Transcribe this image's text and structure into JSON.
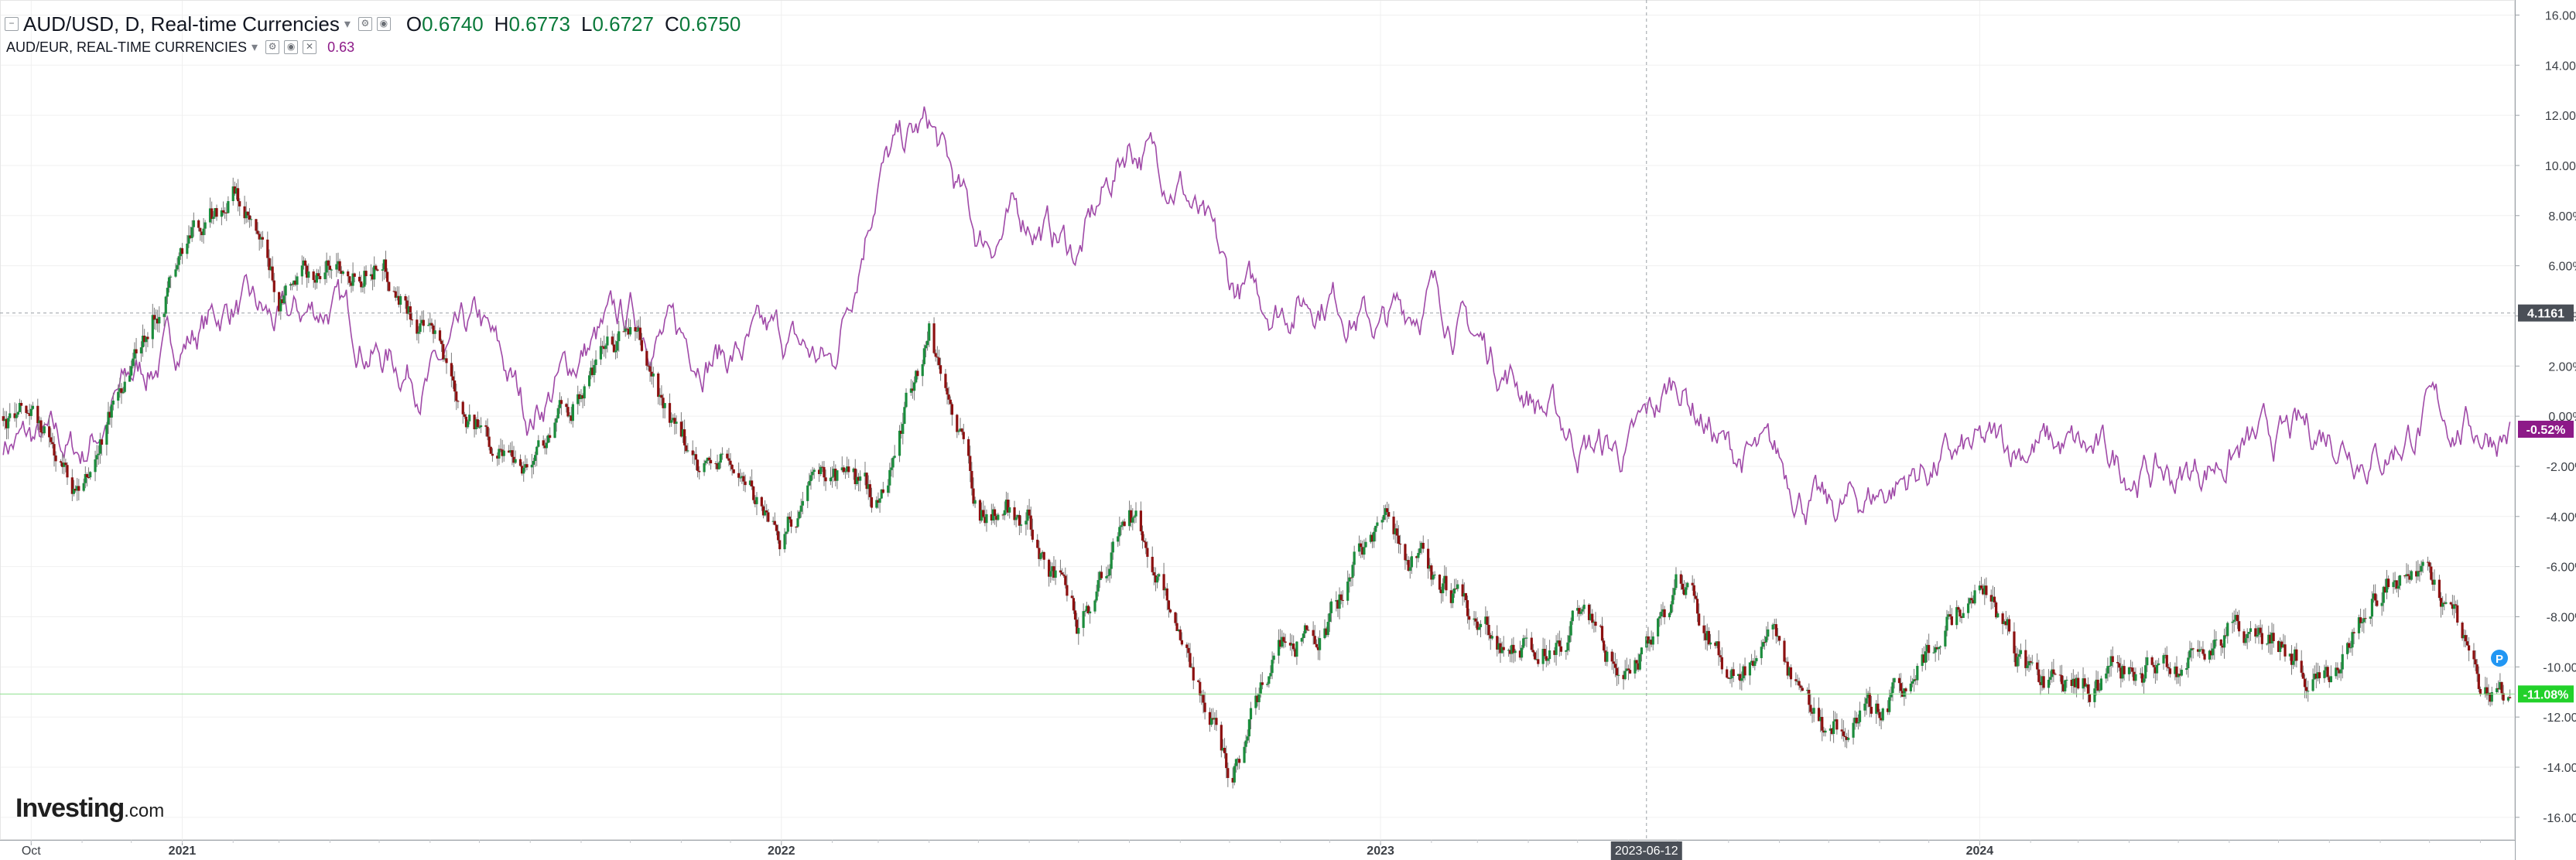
{
  "header": {
    "symbol": "AUD/USD, D, Real-time Currencies",
    "open_label": "O",
    "open": "0.6740",
    "high_label": "H",
    "high": "0.6773",
    "low_label": "L",
    "low": "0.6727",
    "close_label": "C",
    "close": "0.6750",
    "compare_symbol": "AUD/EUR, REAL-TIME CURRENCIES",
    "compare_value": "0.63"
  },
  "logo": {
    "main": "Investing",
    "suffix": ".com"
  },
  "colors": {
    "up": "#1b8c3c",
    "down": "#8c1010",
    "compare": "#a04aa8",
    "last_price_tag": "#22d12a",
    "compare_tag": "#8d1a88",
    "crosshair_tag": "#4a4f57"
  },
  "chart_data": {
    "type": "line",
    "xlabel": "",
    "ylabel": "",
    "x_ticks": [
      "Oct",
      "2021",
      "2022",
      "2023",
      "2023-06-12",
      "2024"
    ],
    "y_ticks": [
      "16.00%",
      "14.00%",
      "12.00%",
      "10.00%",
      "8.00%",
      "6.00%",
      "4.00%",
      "2.00%",
      "0.00%",
      "-2.00%",
      "-4.00%",
      "-6.00%",
      "-8.00%",
      "-10.00%",
      "-12.00%",
      "-14.00%",
      "-16.00%"
    ],
    "ylim": [
      -16.9,
      16.6
    ],
    "grid": true,
    "crosshair": {
      "x_label": "2023-06-12",
      "y_label": "4.1161"
    },
    "last_tags": {
      "compare": "-0.52%",
      "main": "-11.08%"
    },
    "series": [
      {
        "kind": "candlestick",
        "x": [
          "2020-10-01",
          "2020-11-01",
          "2020-12-01",
          "2021-01-01",
          "2021-02-01",
          "2021-03-01",
          "2021-04-01",
          "2021-05-01",
          "2021-06-01",
          "2021-07-01",
          "2021-08-01",
          "2021-09-01",
          "2021-10-01",
          "2021-11-01",
          "2021-12-01",
          "2022-01-01",
          "2022-02-01",
          "2022-03-01",
          "2022-04-01",
          "2022-05-01",
          "2022-06-01",
          "2022-07-01",
          "2022-08-01",
          "2022-09-01",
          "2022-10-01",
          "2022-11-01",
          "2022-12-01",
          "2023-01-01",
          "2023-02-01",
          "2023-03-01",
          "2023-04-01",
          "2023-05-01",
          "2023-06-01",
          "2023-07-01",
          "2023-08-01",
          "2023-09-01",
          "2023-10-01",
          "2023-11-01",
          "2023-12-01",
          "2024-01-01",
          "2024-02-01",
          "2024-03-01",
          "2024-04-01",
          "2024-05-01",
          "2024-06-01",
          "2024-07-01",
          "2024-08-01",
          "2024-09-01",
          "2024-10-01",
          "2024-11-01"
        ],
        "values": [
          0.0,
          -3.5,
          2.5,
          6.5,
          9.0,
          4.5,
          6.0,
          6.5,
          3.0,
          -0.5,
          -1.5,
          1.0,
          3.5,
          -1.5,
          -2.0,
          -4.5,
          -2.0,
          -3.5,
          3.5,
          -3.5,
          -4.0,
          -8.5,
          -3.5,
          -8.5,
          -14.0,
          -9.0,
          -8.0,
          -4.0,
          -6.5,
          -8.5,
          -9.5,
          -8.0,
          -10.5,
          -6.5,
          -10.5,
          -9.5,
          -12.5,
          -12.0,
          -9.0,
          -6.5,
          -10.5,
          -11.0,
          -10.0,
          -10.0,
          -8.5,
          -9.0,
          -10.5,
          -6.5,
          -5.5,
          -11.0
        ]
      },
      {
        "kind": "line",
        "x": [
          "2020-10-01",
          "2020-11-01",
          "2020-12-01",
          "2021-01-01",
          "2021-02-01",
          "2021-03-01",
          "2021-04-01",
          "2021-05-01",
          "2021-06-01",
          "2021-07-01",
          "2021-08-01",
          "2021-09-01",
          "2021-10-01",
          "2021-11-01",
          "2021-12-01",
          "2022-01-01",
          "2022-02-01",
          "2022-03-01",
          "2022-04-01",
          "2022-05-01",
          "2022-06-01",
          "2022-07-01",
          "2022-08-01",
          "2022-09-01",
          "2022-10-01",
          "2022-11-01",
          "2022-12-01",
          "2023-01-01",
          "2023-02-01",
          "2023-03-01",
          "2023-04-01",
          "2023-05-01",
          "2023-06-01",
          "2023-07-01",
          "2023-08-01",
          "2023-09-01",
          "2023-10-01",
          "2023-11-01",
          "2023-12-01",
          "2024-01-01",
          "2024-02-01",
          "2024-03-01",
          "2024-04-01",
          "2024-05-01",
          "2024-06-01",
          "2024-07-01",
          "2024-08-01",
          "2024-09-01",
          "2024-10-01",
          "2024-11-01"
        ],
        "values": [
          -1.0,
          -1.5,
          1.5,
          3.0,
          4.5,
          3.5,
          4.5,
          2.5,
          1.5,
          3.5,
          0.0,
          2.5,
          4.0,
          3.0,
          2.5,
          3.0,
          2.0,
          10.0,
          11.5,
          7.0,
          8.0,
          6.5,
          11.0,
          9.5,
          5.0,
          4.5,
          5.0,
          3.5,
          5.0,
          3.0,
          1.0,
          -1.0,
          -1.5,
          1.5,
          -1.5,
          -2.0,
          -4.0,
          -3.0,
          -2.0,
          -1.5,
          -1.0,
          -1.5,
          -2.0,
          -2.5,
          -1.5,
          -1.0,
          -0.5,
          -1.5,
          0.0,
          -0.5
        ]
      }
    ]
  }
}
